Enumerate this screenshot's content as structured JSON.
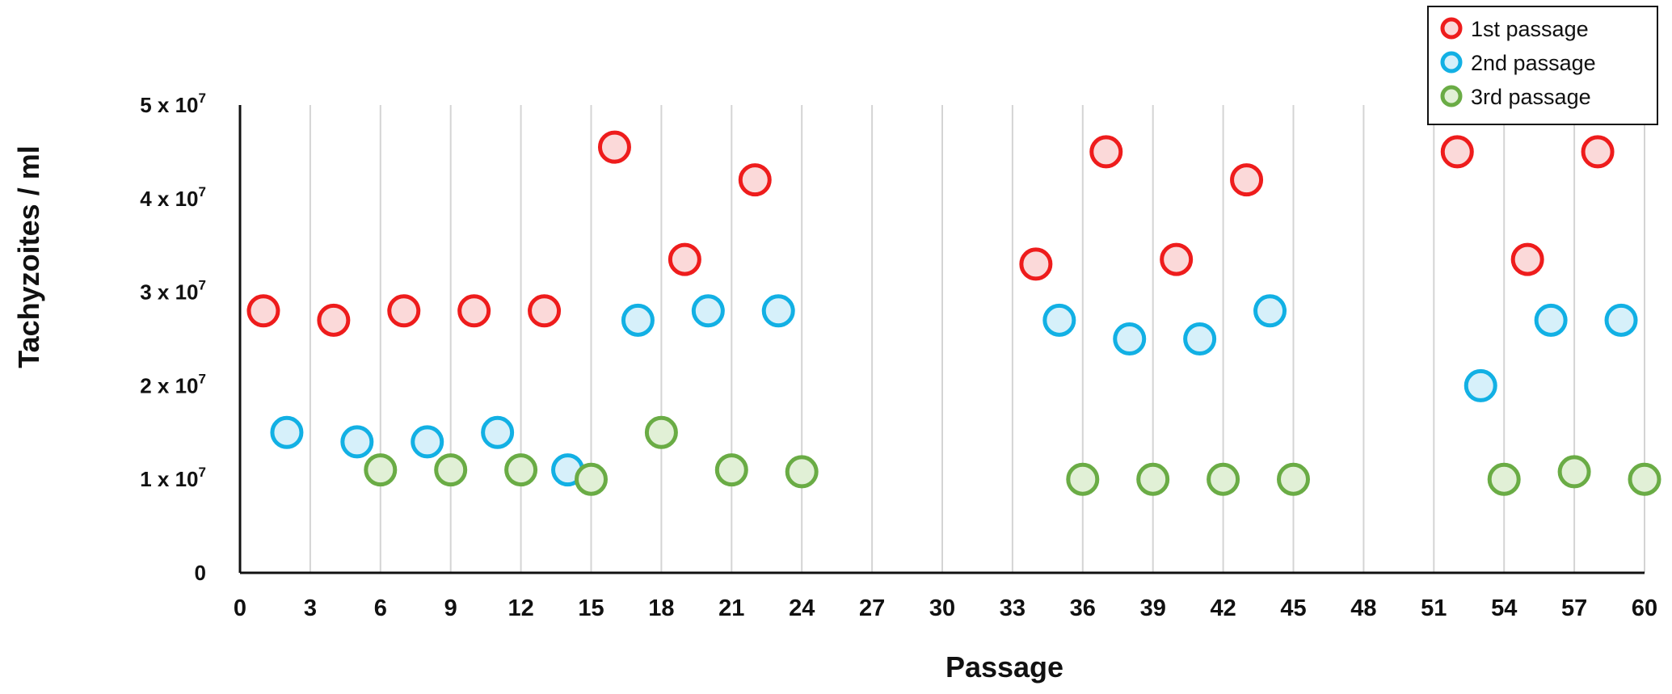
{
  "chart_data": {
    "type": "scatter",
    "xlabel": "Passage",
    "ylabel": "Tachyzoites / ml",
    "xlim": [
      0,
      60
    ],
    "ylim": [
      0,
      5
    ],
    "x_ticks": [
      0,
      3,
      6,
      9,
      12,
      15,
      18,
      21,
      24,
      27,
      30,
      33,
      36,
      39,
      42,
      45,
      48,
      51,
      54,
      57,
      60
    ],
    "y_ticks": [
      {
        "value": 0,
        "mantissa": "0",
        "power": ""
      },
      {
        "value": 1,
        "mantissa": "1 x 10",
        "power": "7"
      },
      {
        "value": 2,
        "mantissa": "2 x 10",
        "power": "7"
      },
      {
        "value": 3,
        "mantissa": "3 x 10",
        "power": "7"
      },
      {
        "value": 4,
        "mantissa": "4 x 10",
        "power": "7"
      },
      {
        "value": 5,
        "mantissa": "5 x 10",
        "power": "7"
      }
    ],
    "y_unit_multiplier": "10^7",
    "grid": "vertical gridlines at each x tick",
    "legend_position": "top-right",
    "marker": "open circle",
    "series": [
      {
        "name": "1st passage",
        "color": "#ee1c1c",
        "fill": "#fbd9d9",
        "points": [
          [
            1,
            2.8
          ],
          [
            4,
            2.7
          ],
          [
            7,
            2.8
          ],
          [
            10,
            2.8
          ],
          [
            13,
            2.8
          ],
          [
            16,
            4.55
          ],
          [
            19,
            3.35
          ],
          [
            22,
            4.2
          ],
          [
            34,
            3.3
          ],
          [
            37,
            4.5
          ],
          [
            40,
            3.35
          ],
          [
            43,
            4.2
          ],
          [
            52,
            4.5
          ],
          [
            55,
            3.35
          ],
          [
            58,
            4.5
          ]
        ]
      },
      {
        "name": "2nd passage",
        "color": "#12b0e4",
        "fill": "#d6f0fa",
        "points": [
          [
            2,
            1.5
          ],
          [
            5,
            1.4
          ],
          [
            8,
            1.4
          ],
          [
            11,
            1.5
          ],
          [
            14,
            1.1
          ],
          [
            17,
            2.7
          ],
          [
            20,
            2.8
          ],
          [
            23,
            2.8
          ],
          [
            35,
            2.7
          ],
          [
            38,
            2.5
          ],
          [
            41,
            2.5
          ],
          [
            44,
            2.8
          ],
          [
            53,
            2.0
          ],
          [
            56,
            2.7
          ],
          [
            59,
            2.7
          ]
        ]
      },
      {
        "name": "3rd passage",
        "color": "#6aac45",
        "fill": "#e1f0d6",
        "points": [
          [
            6,
            1.1
          ],
          [
            9,
            1.1
          ],
          [
            12,
            1.1
          ],
          [
            15,
            1.0
          ],
          [
            18,
            1.5
          ],
          [
            21,
            1.1
          ],
          [
            24,
            1.08
          ],
          [
            36,
            1.0
          ],
          [
            39,
            1.0
          ],
          [
            42,
            1.0
          ],
          [
            45,
            1.0
          ],
          [
            54,
            1.0
          ],
          [
            57,
            1.08
          ],
          [
            60,
            1.0
          ]
        ]
      }
    ]
  }
}
